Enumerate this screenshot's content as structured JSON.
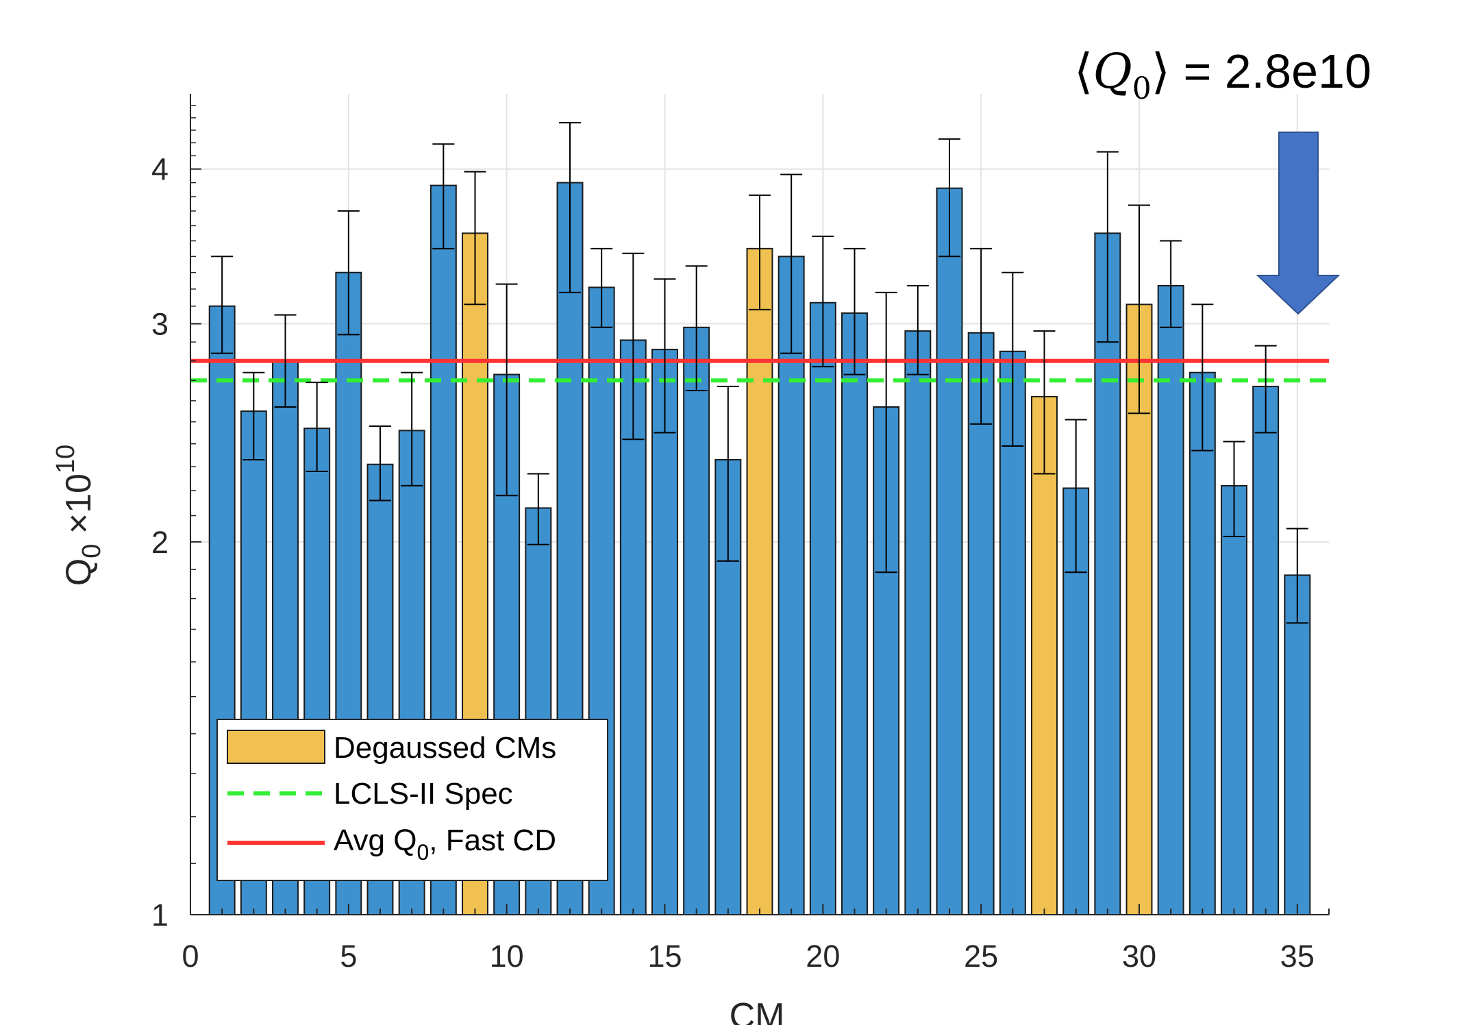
{
  "chart_data": {
    "type": "bar",
    "x": [
      1,
      2,
      3,
      4,
      5,
      6,
      7,
      8,
      9,
      10,
      11,
      12,
      13,
      14,
      15,
      16,
      17,
      18,
      19,
      20,
      21,
      22,
      23,
      24,
      25,
      26,
      27,
      28,
      29,
      30,
      31,
      32,
      33,
      34,
      35
    ],
    "values": [
      3.1,
      2.55,
      2.8,
      2.47,
      3.3,
      2.31,
      2.46,
      3.88,
      3.55,
      2.73,
      2.13,
      3.9,
      3.21,
      2.91,
      2.86,
      2.98,
      2.33,
      3.45,
      3.4,
      3.12,
      3.06,
      2.57,
      2.96,
      3.86,
      2.95,
      2.85,
      2.62,
      2.21,
      3.55,
      3.11,
      3.22,
      2.74,
      2.22,
      2.67,
      1.88
    ],
    "err_low": [
      2.84,
      2.33,
      2.57,
      2.28,
      2.94,
      2.16,
      2.22,
      3.45,
      3.11,
      2.18,
      1.99,
      3.18,
      2.98,
      2.42,
      2.45,
      2.65,
      1.93,
      3.08,
      2.84,
      2.77,
      2.73,
      1.89,
      2.73,
      3.4,
      2.49,
      2.39,
      2.27,
      1.89,
      2.9,
      2.54,
      2.98,
      2.37,
      2.02,
      2.45,
      1.72
    ],
    "err_high": [
      3.4,
      2.74,
      3.05,
      2.69,
      3.7,
      2.48,
      2.74,
      4.19,
      3.98,
      3.23,
      2.27,
      4.36,
      3.45,
      3.42,
      3.26,
      3.34,
      2.67,
      3.81,
      3.96,
      3.53,
      3.45,
      3.18,
      3.22,
      4.23,
      3.45,
      3.3,
      2.96,
      2.51,
      4.13,
      3.74,
      3.5,
      3.11,
      2.41,
      2.88,
      2.05
    ],
    "degaussed": [
      9,
      18,
      27,
      30
    ],
    "hlines": [
      {
        "name": "LCLS-II Spec",
        "value": 2.7,
        "color": "#33ee33",
        "style": "dashed"
      },
      {
        "name": "Avg Q0, Fast CD",
        "value": 2.8,
        "color": "#ff3333",
        "style": "solid"
      }
    ],
    "xlim": [
      0,
      36
    ],
    "ylim": [
      1,
      4.6
    ],
    "yscale": "log",
    "xticks": [
      "0",
      "5",
      "10",
      "15",
      "20",
      "25",
      "30",
      "35"
    ],
    "xtick_values": [
      0,
      5,
      10,
      15,
      20,
      25,
      30,
      35
    ],
    "yticks": [
      "1",
      "2",
      "3",
      "4"
    ],
    "ytick_values": [
      1,
      2,
      3,
      4
    ],
    "xlabel": "CM",
    "ylabel_main": "Q",
    "ylabel_sub": "0",
    "ylabel_times": " ×10",
    "ylabel_exp": "10",
    "grid": true,
    "legend_position": "bottom-left",
    "colors": {
      "bar": "#3d91cf",
      "degaussed_bar": "#f0c050",
      "bar_edge": "#1a1a1a",
      "arrow": "#4472c4",
      "arrow_edge": "#2f528f"
    }
  },
  "legend": {
    "degaussed_label": "Degaussed CMs",
    "spec_label": "LCLS-II Spec",
    "avg_label_main": "Avg Q",
    "avg_label_sub": "0",
    "avg_label_rest": ", Fast CD"
  },
  "annotation": {
    "q_symbol": "Q",
    "q_sub": "0",
    "left_bracket": "⟨",
    "right_bracket": "⟩",
    "value_text": " = 2.8e10"
  }
}
